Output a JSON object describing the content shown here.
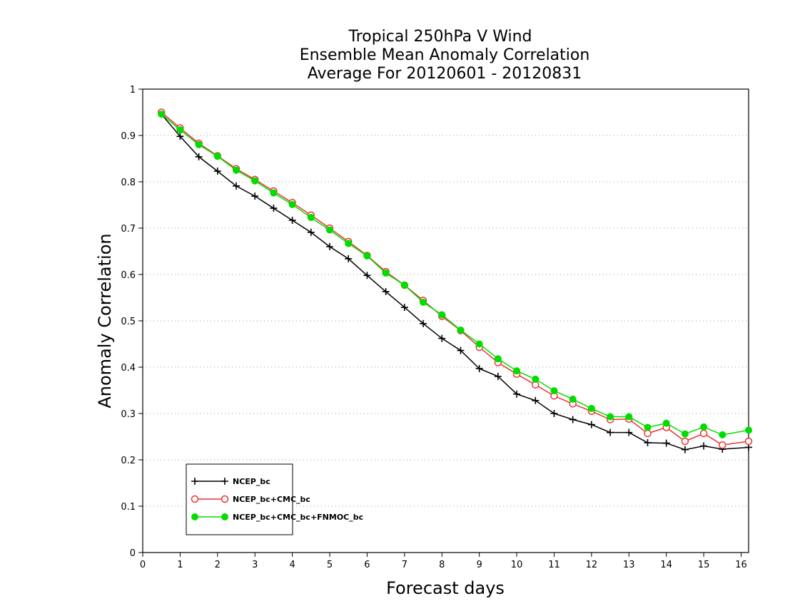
{
  "chart_data": {
    "type": "line",
    "title_lines": [
      "Tropical 250hPa V Wind",
      "Ensemble Mean Anomaly Correlation",
      "Average For 20120601 - 20120831"
    ],
    "xlabel": "Forecast days",
    "ylabel": "Anomaly Correlation",
    "xlim": [
      0,
      16.2
    ],
    "ylim": [
      0,
      1
    ],
    "xticks": [
      0,
      1,
      2,
      3,
      4,
      5,
      6,
      7,
      8,
      9,
      10,
      11,
      12,
      13,
      14,
      15,
      16
    ],
    "yticks": [
      0,
      0.1,
      0.2,
      0.3,
      0.4,
      0.5,
      0.6,
      0.7,
      0.8,
      0.9,
      1
    ],
    "grid": "horizontal-dotted",
    "legend_position": "bottom-left",
    "x": [
      0.5,
      1,
      1.5,
      2,
      2.5,
      3,
      3.5,
      4,
      4.5,
      5,
      5.5,
      6,
      6.5,
      7,
      7.5,
      8,
      8.5,
      9,
      9.5,
      10,
      10.5,
      11,
      11.5,
      12,
      12.5,
      13,
      13.5,
      14,
      14.5,
      15,
      15.5,
      16.2
    ],
    "series": [
      {
        "name": "NCEP_bc",
        "color": "#000000",
        "marker": "plus",
        "values": [
          0.946,
          0.898,
          0.854,
          0.823,
          0.791,
          0.769,
          0.743,
          0.717,
          0.691,
          0.66,
          0.634,
          0.598,
          0.563,
          0.529,
          0.494,
          0.462,
          0.436,
          0.397,
          0.38,
          0.342,
          0.328,
          0.3,
          0.287,
          0.276,
          0.259,
          0.259,
          0.237,
          0.236,
          0.222,
          0.23,
          0.223,
          0.227
        ]
      },
      {
        "name": "NCEP_bc+CMC_bc",
        "color": "#ee3333",
        "marker": "open-circle",
        "values": [
          0.95,
          0.916,
          0.883,
          0.856,
          0.828,
          0.805,
          0.78,
          0.755,
          0.728,
          0.7,
          0.671,
          0.641,
          0.606,
          0.577,
          0.544,
          0.51,
          0.479,
          0.443,
          0.41,
          0.385,
          0.362,
          0.338,
          0.321,
          0.305,
          0.287,
          0.288,
          0.257,
          0.27,
          0.24,
          0.257,
          0.232,
          0.24
        ]
      },
      {
        "name": "NCEP_bc+CMC_bc+FNMOC_bc",
        "color": "#00dd00",
        "marker": "filled-circle",
        "values": [
          0.946,
          0.912,
          0.88,
          0.855,
          0.825,
          0.802,
          0.776,
          0.751,
          0.723,
          0.696,
          0.667,
          0.64,
          0.603,
          0.577,
          0.54,
          0.513,
          0.48,
          0.45,
          0.418,
          0.392,
          0.374,
          0.349,
          0.331,
          0.311,
          0.293,
          0.293,
          0.27,
          0.279,
          0.256,
          0.271,
          0.254,
          0.264
        ]
      }
    ]
  }
}
